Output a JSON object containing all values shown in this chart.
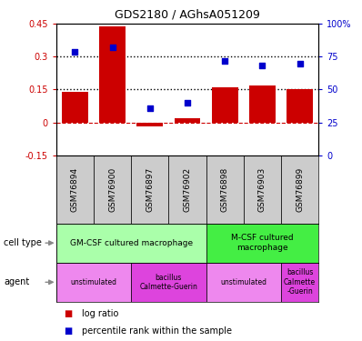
{
  "title": "GDS2180 / AGhsA051209",
  "samples": [
    "GSM76894",
    "GSM76900",
    "GSM76897",
    "GSM76902",
    "GSM76898",
    "GSM76903",
    "GSM76899"
  ],
  "log_ratio": [
    0.14,
    0.44,
    -0.02,
    0.02,
    0.16,
    0.17,
    0.15
  ],
  "percentile_rank": [
    79,
    82,
    36,
    40,
    72,
    68,
    70
  ],
  "ylim_left": [
    -0.15,
    0.45
  ],
  "ylim_right": [
    0,
    100
  ],
  "yticks_left": [
    -0.15,
    0,
    0.15,
    0.3,
    0.45
  ],
  "yticks_left_labels": [
    "-0.15",
    "0",
    "0.15",
    "0.3",
    "0.45"
  ],
  "yticks_right": [
    0,
    25,
    50,
    75,
    100
  ],
  "yticks_right_labels": [
    "0",
    "25",
    "50",
    "75",
    "100%"
  ],
  "hlines": [
    0.15,
    0.3
  ],
  "bar_color": "#cc0000",
  "dot_color": "#0000cc",
  "bg_color": "#ffffff",
  "sample_box_color": "#cccccc",
  "cell_type_groups": [
    {
      "label": "GM-CSF cultured macrophage",
      "start": 0,
      "end": 4,
      "color": "#aaffaa"
    },
    {
      "label": "M-CSF cultured\nmacrophage",
      "start": 4,
      "end": 7,
      "color": "#44ee44"
    }
  ],
  "agent_groups": [
    {
      "label": "unstimulated",
      "start": 0,
      "end": 2,
      "color": "#ee88ee"
    },
    {
      "label": "bacillus\nCalmette-Guerin",
      "start": 2,
      "end": 4,
      "color": "#dd44dd"
    },
    {
      "label": "unstimulated",
      "start": 4,
      "end": 6,
      "color": "#ee88ee"
    },
    {
      "label": "bacillus\nCalmette\n-Guerin",
      "start": 6,
      "end": 7,
      "color": "#dd44dd"
    }
  ],
  "legend_items": [
    {
      "label": "log ratio",
      "color": "#cc0000"
    },
    {
      "label": "percentile rank within the sample",
      "color": "#0000cc"
    }
  ]
}
